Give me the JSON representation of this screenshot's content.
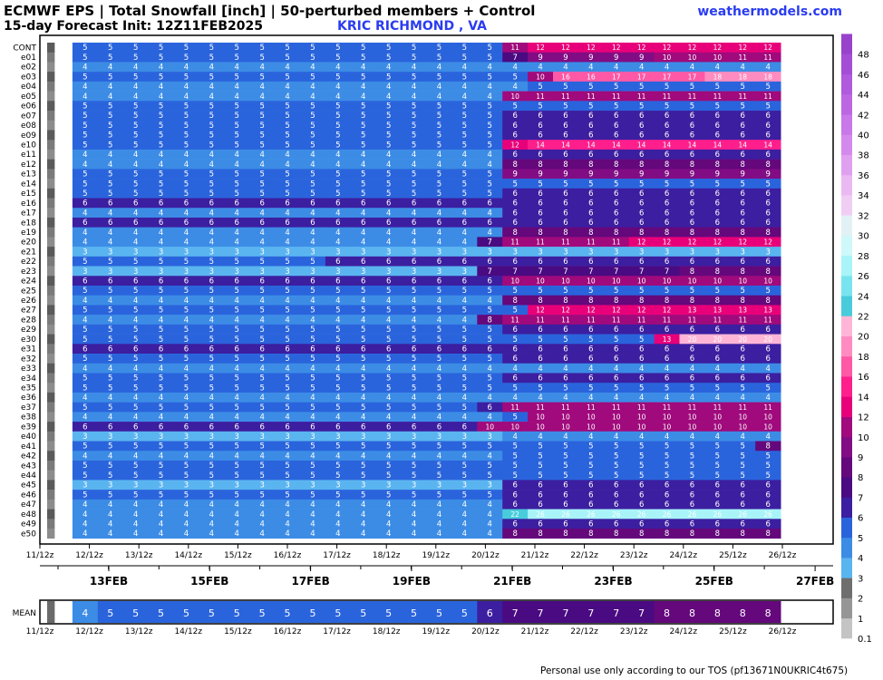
{
  "header": {
    "title": "ECMWF EPS | Total Snowfall [inch] | 50-perturbed members + Control",
    "subtitle": "15-day Forecast Init: 12Z11FEB2025",
    "location": "KRIC RICHMOND      , VA",
    "site": "weathermodels.com"
  },
  "footer": "Personal use only according to our TOS (pf13671N0UKRIC4t675)",
  "colorscale": {
    "levels": [
      0.1,
      1,
      2,
      3,
      4,
      5,
      6,
      7,
      8,
      9,
      10,
      12,
      14,
      16,
      18,
      20,
      22,
      24,
      26,
      28,
      30,
      32,
      34,
      36,
      38,
      40,
      42,
      44,
      46,
      48
    ],
    "labels": [
      "0.1",
      "1",
      "2",
      "3",
      "4",
      "5",
      "6",
      "7",
      "8",
      "9",
      "10",
      "12",
      "14",
      "16",
      "18",
      "20",
      "22",
      "24",
      "26",
      "28",
      "30",
      "32",
      "34",
      "36",
      "38",
      "40",
      "42",
      "44",
      "46",
      "48"
    ],
    "colors": [
      "#c4c4c4",
      "#969696",
      "#6e6e6e",
      "#5ab4f0",
      "#3c8ce6",
      "#2a64dc",
      "#3c1ea0",
      "#4a0a82",
      "#64087c",
      "#820c84",
      "#a00a7c",
      "#e8007a",
      "#ff1f8c",
      "#ff58a6",
      "#ff8cc0",
      "#ffb6d6",
      "#48ccdc",
      "#78e4f0",
      "#a8f4f8",
      "#cef8fa",
      "#e2f2f4",
      "#f0cef4",
      "#eab8f2",
      "#e0a0f0",
      "#d48aec",
      "#c878e8",
      "#bc66e2",
      "#b05ade",
      "#a44ed6",
      "#9842cc"
    ]
  },
  "chart_data": {
    "type": "heatmap",
    "members": [
      "CONT",
      "e01",
      "e02",
      "e03",
      "e04",
      "e05",
      "e06",
      "e07",
      "e08",
      "e09",
      "e10",
      "e11",
      "e12",
      "e13",
      "e14",
      "e15",
      "e16",
      "e17",
      "e18",
      "e19",
      "e20",
      "e21",
      "e22",
      "e23",
      "e24",
      "e25",
      "e26",
      "e27",
      "e28",
      "e29",
      "e30",
      "e31",
      "e32",
      "e33",
      "e34",
      "e35",
      "e36",
      "e37",
      "e38",
      "e39",
      "e40",
      "e41",
      "e42",
      "e43",
      "e44",
      "e45",
      "e46",
      "e47",
      "e48",
      "e49",
      "e50"
    ],
    "xticks": [
      "11/12z",
      "12/12z",
      "13/12z",
      "14/12z",
      "15/12z",
      "16/12z",
      "17/12z",
      "18/12z",
      "19/12z",
      "20/12z",
      "21/12z",
      "22/12z",
      "23/12z",
      "24/12z",
      "25/12z",
      "26/12z"
    ],
    "dates": [
      "13FEB",
      "15FEB",
      "17FEB",
      "19FEB",
      "21FEB",
      "23FEB",
      "25FEB",
      "27FEB"
    ],
    "grid_spec": "Each row: step-0 value, then [value, count] runs of 12-hourly steps (29 steps total). 0 = no snow.",
    "rows": [
      [
        0,
        [
          5,
          17
        ],
        [
          11,
          1
        ],
        [
          12,
          10
        ]
      ],
      [
        0,
        [
          5,
          17
        ],
        [
          7,
          1
        ],
        [
          9,
          5
        ],
        [
          10,
          3
        ],
        [
          11,
          2
        ]
      ],
      [
        0,
        [
          4,
          28
        ]
      ],
      [
        0,
        [
          5,
          18
        ],
        [
          10,
          1
        ],
        [
          16,
          2
        ],
        [
          17,
          4
        ],
        [
          18,
          3
        ]
      ],
      [
        0,
        [
          4,
          18
        ],
        [
          5,
          10
        ]
      ],
      [
        0,
        [
          4,
          17
        ],
        [
          10,
          1
        ],
        [
          11,
          10
        ]
      ],
      [
        0,
        [
          5,
          28
        ]
      ],
      [
        0,
        [
          5,
          17
        ],
        [
          6,
          11
        ]
      ],
      [
        0,
        [
          5,
          17
        ],
        [
          6,
          11
        ]
      ],
      [
        0,
        [
          5,
          17
        ],
        [
          6,
          11
        ]
      ],
      [
        0,
        [
          5,
          17
        ],
        [
          12,
          1
        ],
        [
          14,
          10
        ]
      ],
      [
        0,
        [
          4,
          17
        ],
        [
          6,
          11
        ]
      ],
      [
        0,
        [
          4,
          17
        ],
        [
          8,
          11
        ]
      ],
      [
        0,
        [
          5,
          17
        ],
        [
          9,
          11
        ]
      ],
      [
        0,
        [
          5,
          28
        ]
      ],
      [
        0,
        [
          5,
          17
        ],
        [
          6,
          11
        ]
      ],
      [
        0,
        [
          6,
          28
        ]
      ],
      [
        0,
        [
          4,
          17
        ],
        [
          6,
          11
        ]
      ],
      [
        0,
        [
          6,
          28
        ]
      ],
      [
        0,
        [
          4,
          17
        ],
        [
          8,
          11
        ]
      ],
      [
        0,
        [
          4,
          16
        ],
        [
          7,
          1
        ],
        [
          11,
          5
        ],
        [
          12,
          6
        ]
      ],
      [
        0,
        [
          3,
          28
        ]
      ],
      [
        0,
        [
          5,
          10
        ],
        [
          6,
          18
        ]
      ],
      [
        0,
        [
          3,
          16
        ],
        [
          7,
          8
        ],
        [
          8,
          4
        ]
      ],
      [
        0,
        [
          6,
          17
        ],
        [
          10,
          11
        ]
      ],
      [
        0,
        [
          5,
          28
        ]
      ],
      [
        0,
        [
          4,
          17
        ],
        [
          8,
          11
        ]
      ],
      [
        0,
        [
          5,
          18
        ],
        [
          12,
          6
        ],
        [
          13,
          4
        ]
      ],
      [
        0,
        [
          4,
          16
        ],
        [
          8,
          1
        ],
        [
          11,
          11
        ]
      ],
      [
        0,
        [
          5,
          17
        ],
        [
          6,
          11
        ]
      ],
      [
        0,
        [
          5,
          18
        ],
        [
          5,
          5
        ],
        [
          13,
          1
        ],
        [
          20,
          4
        ]
      ],
      [
        0,
        [
          6,
          17
        ],
        [
          6,
          11
        ]
      ],
      [
        0,
        [
          5,
          17
        ],
        [
          6,
          11
        ]
      ],
      [
        0,
        [
          4,
          28
        ]
      ],
      [
        0,
        [
          5,
          17
        ],
        [
          6,
          11
        ]
      ],
      [
        0,
        [
          5,
          28
        ]
      ],
      [
        0,
        [
          4,
          28
        ]
      ],
      [
        0,
        [
          5,
          16
        ],
        [
          6,
          1
        ],
        [
          11,
          11
        ]
      ],
      [
        0,
        [
          4,
          17
        ],
        [
          5,
          1
        ],
        [
          10,
          10
        ]
      ],
      [
        0,
        [
          6,
          16
        ],
        [
          10,
          1
        ],
        [
          10,
          11
        ]
      ],
      [
        0,
        [
          3,
          17
        ],
        [
          4,
          11
        ]
      ],
      [
        0,
        [
          5,
          27
        ],
        [
          8,
          1
        ]
      ],
      [
        0,
        [
          4,
          17
        ],
        [
          5,
          11
        ]
      ],
      [
        0,
        [
          5,
          28
        ]
      ],
      [
        0,
        [
          5,
          28
        ]
      ],
      [
        0,
        [
          3,
          17
        ],
        [
          6,
          11
        ]
      ],
      [
        0,
        [
          5,
          17
        ],
        [
          6,
          11
        ]
      ],
      [
        0,
        [
          4,
          17
        ],
        [
          6,
          11
        ]
      ],
      [
        0,
        [
          4,
          17
        ],
        [
          22,
          1
        ],
        [
          26,
          10
        ]
      ],
      [
        0,
        [
          4,
          17
        ],
        [
          6,
          11
        ]
      ],
      [
        0,
        [
          4,
          17
        ],
        [
          8,
          11
        ]
      ]
    ],
    "mean": {
      "label": "MEAN",
      "row": [
        0,
        [
          4,
          1
        ],
        [
          5,
          15
        ],
        [
          6,
          1
        ],
        [
          7,
          6
        ],
        [
          8,
          5
        ]
      ]
    }
  }
}
